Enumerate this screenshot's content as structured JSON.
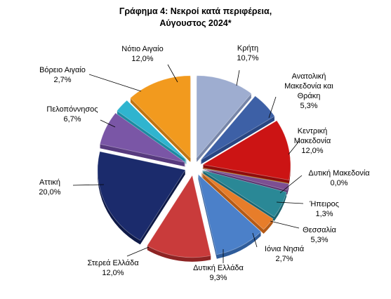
{
  "chart_data": {
    "type": "pie",
    "title_lines": [
      "Γράφημα 4: Νεκροί κατά περιφέρεια,",
      "Αύγουστος 2024*"
    ],
    "slices": [
      {
        "label": [
          "Κρήτη"
        ],
        "pct": "10,7%",
        "value": 10.7,
        "color": "#9eadd0",
        "dark": "#7685a8"
      },
      {
        "label": [
          "Ανατολική",
          "Μακεδονία και",
          "Θράκη"
        ],
        "pct": "5,3%",
        "value": 5.3,
        "color": "#3d60a6",
        "dark": "#294682"
      },
      {
        "label": [
          "Κεντρική",
          "Μακεδονία"
        ],
        "pct": "12,0%",
        "value": 12.0,
        "color": "#cc1414",
        "dark": "#8f0c0c"
      },
      {
        "label": [
          "Δυτική Μακεδονία"
        ],
        "pct": "0,0%",
        "value": 0.0,
        "color": "#d49a3a",
        "dark": "#a07020"
      },
      {
        "label": [
          "Ήπειρος"
        ],
        "pct": "1,3%",
        "value": 1.3,
        "color": "#7d4f92",
        "dark": "#5a3570"
      },
      {
        "label": [
          "Θεσσαλία"
        ],
        "pct": "5,3%",
        "value": 5.3,
        "color": "#2a8896",
        "dark": "#1a6470"
      },
      {
        "label": [
          "Ιόνια Νησιά"
        ],
        "pct": "2,7%",
        "value": 2.7,
        "color": "#e77d2a",
        "dark": "#b45a16"
      },
      {
        "label": [
          "Δυτική Ελλάδα"
        ],
        "pct": "9,3%",
        "value": 9.3,
        "color": "#4b80c9",
        "dark": "#2f5c9a"
      },
      {
        "label": [
          "Στερεά Ελλάδα"
        ],
        "pct": "12,0%",
        "value": 12.0,
        "color": "#c93b3b",
        "dark": "#8e2424"
      },
      {
        "label": [
          "Αττική"
        ],
        "pct": "20,0%",
        "value": 20.0,
        "color": "#1b2b6c",
        "dark": "#0f1a48"
      },
      {
        "label": [
          "Πελοπόννησος"
        ],
        "pct": "6,7%",
        "value": 6.7,
        "color": "#7a56a6",
        "dark": "#573a7e"
      },
      {
        "label": [
          "Βόρειο Αιγαίο"
        ],
        "pct": "2,7%",
        "value": 2.7,
        "color": "#2fb4cf",
        "dark": "#1c8aa0"
      },
      {
        "label": [
          "Νότιο Αιγαίο"
        ],
        "pct": "12,0%",
        "value": 12.0,
        "color": "#f29a1e",
        "dark": "#c27410"
      }
    ],
    "start_angle_deg": 0,
    "direction": "clockwise",
    "style": "3d-exploded",
    "legend": "none"
  }
}
